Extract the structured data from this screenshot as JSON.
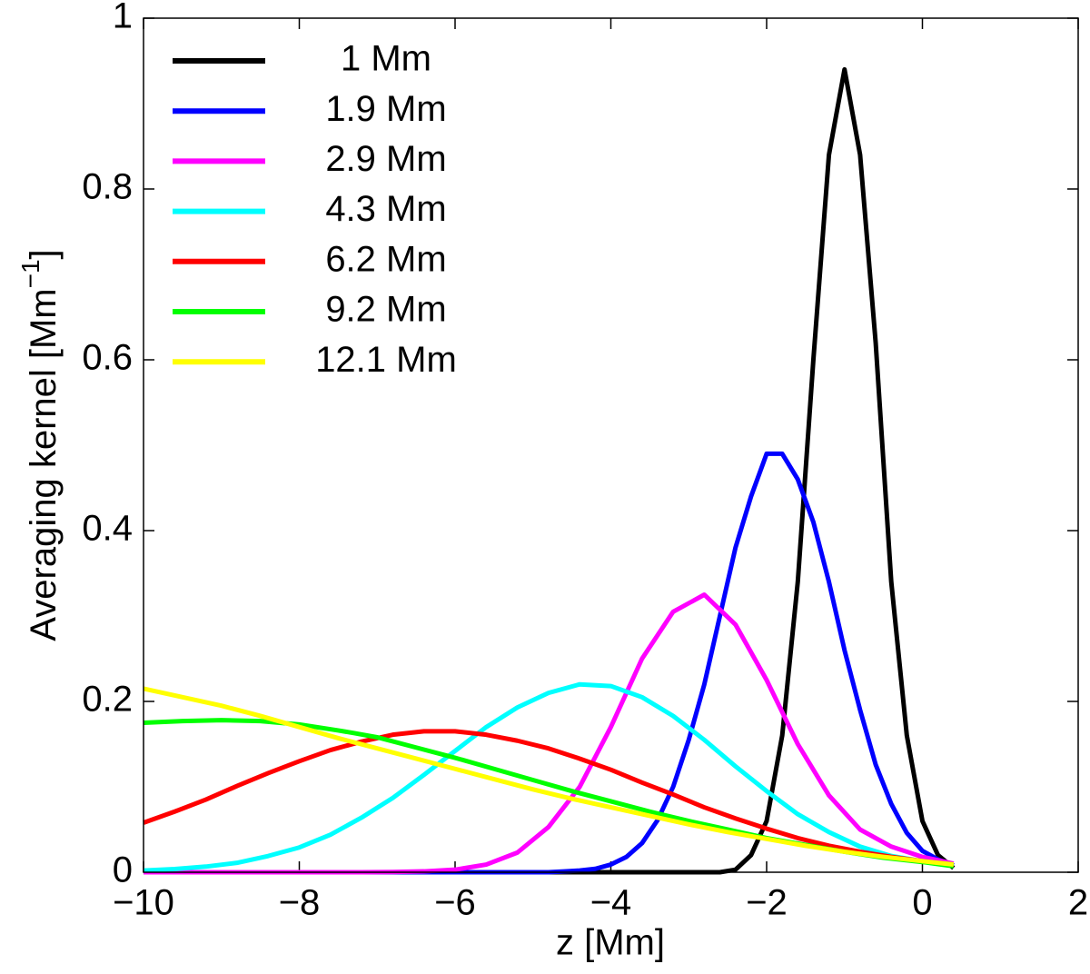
{
  "chart_data": {
    "type": "line",
    "xlabel": "z [Mm]",
    "ylabel": "Averaging kernel [Mm",
    "ylabel_sup": "−1",
    "ylabel_end": "]",
    "xlim": [
      -10,
      2
    ],
    "ylim": [
      0,
      1
    ],
    "xticks": [
      {
        "value": -10,
        "label": "−10"
      },
      {
        "value": -8,
        "label": "−8"
      },
      {
        "value": -6,
        "label": "−6"
      },
      {
        "value": -4,
        "label": "−4"
      },
      {
        "value": -2,
        "label": "−2"
      },
      0,
      2
    ],
    "yticks": [
      0,
      0.2,
      0.4,
      0.6,
      0.8,
      1
    ],
    "grid": false,
    "legend": "upper left",
    "series": [
      {
        "name": "1 Mm",
        "color": "#000000",
        "x": [
          -10,
          -2.6,
          -2.4,
          -2.2,
          -2,
          -1.8,
          -1.6,
          -1.4,
          -1.2,
          -1,
          -0.8,
          -0.6,
          -0.4,
          -0.2,
          0,
          0.2,
          0.4
        ],
        "values": [
          0,
          0,
          0.003,
          0.02,
          0.06,
          0.16,
          0.34,
          0.6,
          0.84,
          0.94,
          0.84,
          0.62,
          0.34,
          0.16,
          0.06,
          0.02,
          0.005
        ]
      },
      {
        "name": "1.9 Mm",
        "color": "#0000ff",
        "x": [
          -10,
          -4.8,
          -4.6,
          -4.4,
          -4.2,
          -4,
          -3.8,
          -3.6,
          -3.4,
          -3.2,
          -3,
          -2.8,
          -2.6,
          -2.4,
          -2.2,
          -2,
          -1.8,
          -1.6,
          -1.4,
          -1.2,
          -1,
          -0.8,
          -0.6,
          -0.4,
          -0.2,
          0,
          0.2,
          0.4
        ],
        "values": [
          0,
          0,
          0.001,
          0.002,
          0.004,
          0.009,
          0.018,
          0.034,
          0.061,
          0.1,
          0.155,
          0.22,
          0.3,
          0.38,
          0.44,
          0.49,
          0.49,
          0.46,
          0.41,
          0.34,
          0.26,
          0.19,
          0.126,
          0.08,
          0.046,
          0.025,
          0.015,
          0.008
        ]
      },
      {
        "name": "2.9 Mm",
        "color": "#ff00ff",
        "x": [
          -10,
          -7.2,
          -6.8,
          -6.4,
          -6,
          -5.6,
          -5.2,
          -4.8,
          -4.4,
          -4,
          -3.6,
          -3.2,
          -2.8,
          -2.4,
          -2,
          -1.6,
          -1.2,
          -0.8,
          -0.4,
          0,
          0.4
        ],
        "values": [
          0,
          0,
          0.0002,
          0.001,
          0.003,
          0.009,
          0.023,
          0.053,
          0.1,
          0.17,
          0.25,
          0.305,
          0.325,
          0.29,
          0.225,
          0.15,
          0.09,
          0.05,
          0.03,
          0.018,
          0.01
        ]
      },
      {
        "name": "4.3 Mm",
        "color": "#00ffff",
        "x": [
          -10,
          -9.6,
          -9.2,
          -8.8,
          -8.4,
          -8,
          -7.6,
          -7.2,
          -6.8,
          -6.4,
          -6,
          -5.6,
          -5.2,
          -4.8,
          -4.4,
          -4,
          -3.6,
          -3.2,
          -2.8,
          -2.4,
          -2,
          -1.6,
          -1.2,
          -0.8,
          -0.4,
          0,
          0.4
        ],
        "values": [
          0.002,
          0.0037,
          0.0066,
          0.011,
          0.019,
          0.029,
          0.044,
          0.064,
          0.087,
          0.114,
          0.142,
          0.17,
          0.193,
          0.21,
          0.22,
          0.218,
          0.205,
          0.183,
          0.155,
          0.124,
          0.095,
          0.068,
          0.047,
          0.03,
          0.019,
          0.013,
          0.009
        ]
      },
      {
        "name": "6.2 Mm",
        "color": "#ff0000",
        "x": [
          -10,
          -9.6,
          -9.2,
          -8.8,
          -8.4,
          -8,
          -7.6,
          -7.2,
          -6.8,
          -6.4,
          -6,
          -5.6,
          -5.2,
          -4.8,
          -4.4,
          -4,
          -3.6,
          -3.2,
          -2.8,
          -2.4,
          -2,
          -1.6,
          -1.2,
          -0.8,
          -0.4,
          0,
          0.4
        ],
        "values": [
          0.058,
          0.071,
          0.085,
          0.101,
          0.116,
          0.13,
          0.143,
          0.153,
          0.161,
          0.165,
          0.165,
          0.161,
          0.154,
          0.145,
          0.133,
          0.12,
          0.105,
          0.091,
          0.076,
          0.063,
          0.051,
          0.04,
          0.031,
          0.024,
          0.018,
          0.013,
          0.009
        ]
      },
      {
        "name": "9.2 Mm",
        "color": "#00ff00",
        "x": [
          -10,
          -9.5,
          -9,
          -8.5,
          -8,
          -7.5,
          -7.3,
          -7,
          -6.5,
          -6,
          -5.5,
          -5,
          -4.5,
          -4,
          -3.5,
          -3,
          -2.5,
          -2,
          -1.5,
          -1,
          -0.5,
          0,
          0.4
        ],
        "values": [
          0.175,
          0.177,
          0.178,
          0.177,
          0.173,
          0.166,
          0.163,
          0.158,
          0.146,
          0.134,
          0.121,
          0.108,
          0.095,
          0.083,
          0.071,
          0.06,
          0.05,
          0.04,
          0.032,
          0.024,
          0.017,
          0.012,
          0.007
        ]
      },
      {
        "name": "12.1 Mm",
        "color": "#ffff00",
        "x": [
          -10,
          -9.5,
          -9,
          -8.5,
          -8,
          -7.5,
          -7,
          -6.5,
          -6,
          -5.5,
          -5,
          -4.5,
          -4,
          -3.5,
          -3,
          -2.5,
          -2,
          -1.5,
          -1,
          -0.5,
          0,
          0.4
        ],
        "values": [
          0.215,
          0.205,
          0.195,
          0.183,
          0.17,
          0.157,
          0.145,
          0.133,
          0.121,
          0.109,
          0.097,
          0.086,
          0.076,
          0.066,
          0.056,
          0.047,
          0.039,
          0.031,
          0.024,
          0.018,
          0.013,
          0.009
        ]
      }
    ]
  }
}
